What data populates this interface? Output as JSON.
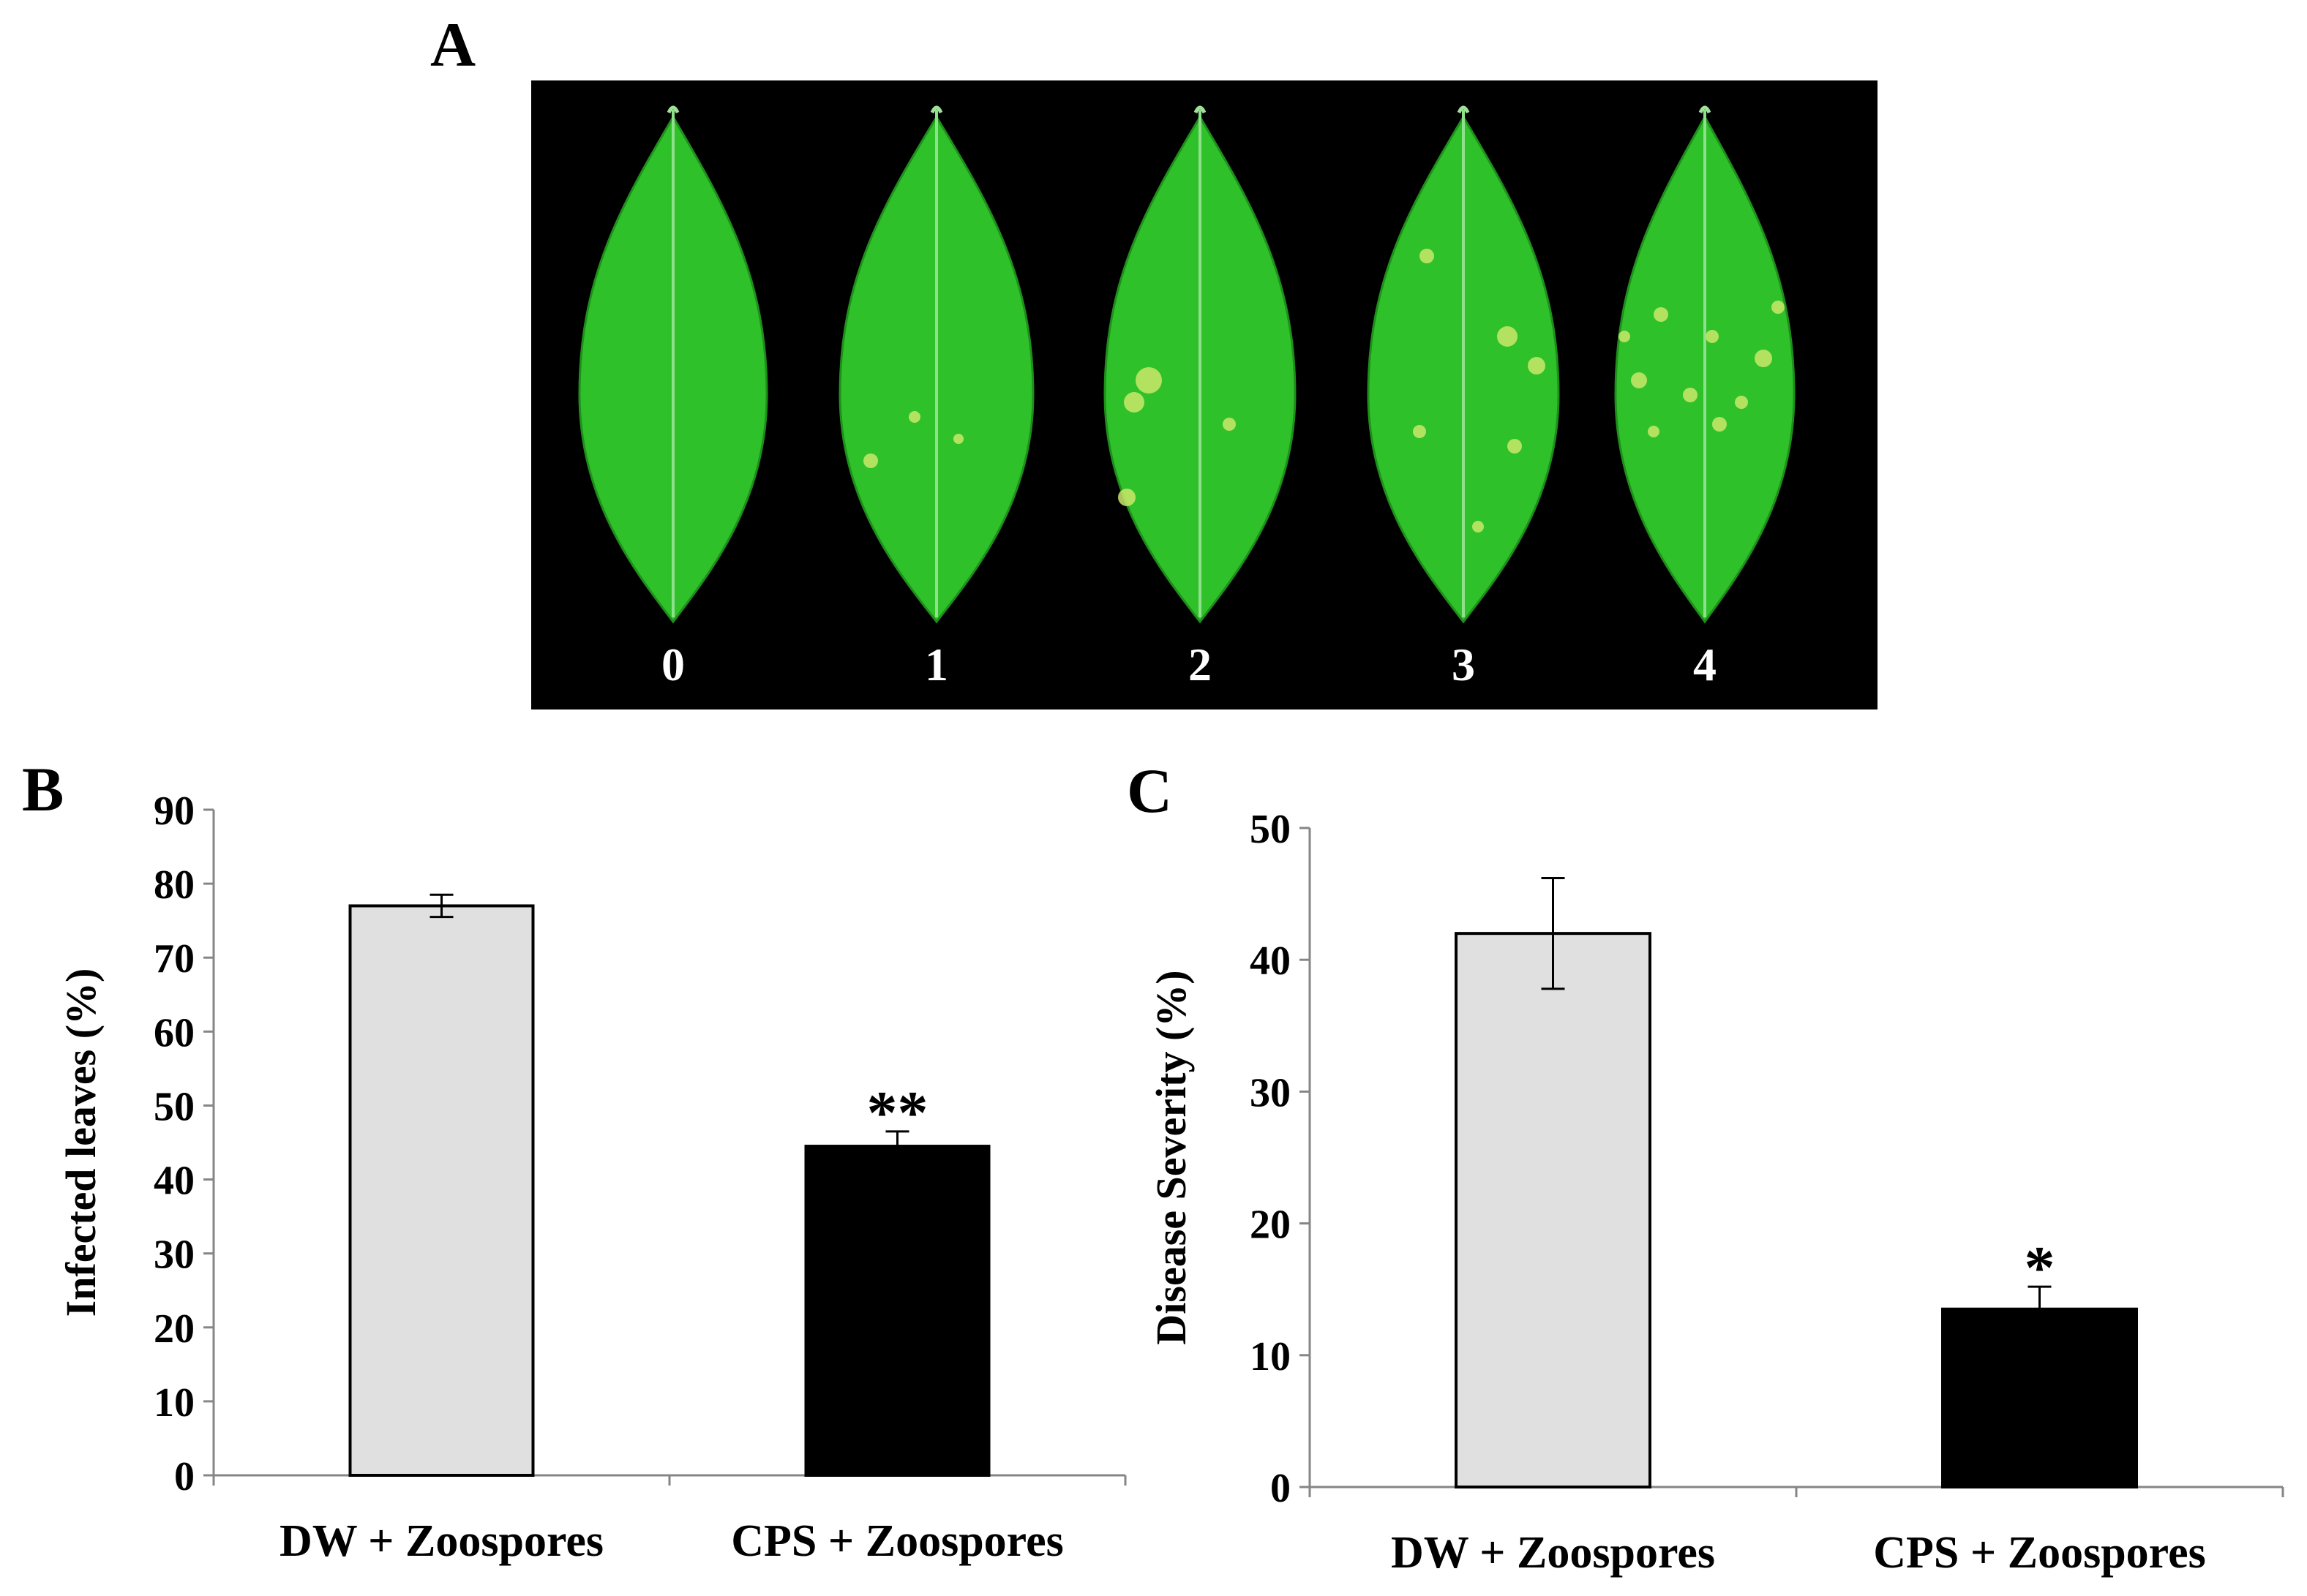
{
  "panel_a": {
    "label": "A",
    "leaf_scores": [
      "0",
      "1",
      "2",
      "3",
      "4"
    ],
    "background_color": "#000000",
    "leaf_color": "#2fc12a",
    "lesion_color": "#c9e86a"
  },
  "chart_data": [
    {
      "panel": "B",
      "type": "bar",
      "categories": [
        "DW + Zoospores",
        "CPS + Zoospores"
      ],
      "values": [
        77,
        44.5
      ],
      "errors": [
        1.5,
        2.0
      ],
      "significance": [
        "",
        "**"
      ],
      "bar_colors": [
        "#e0e0e0",
        "#000000"
      ],
      "title": "",
      "xlabel": "",
      "ylabel": "Infected leaves (%)",
      "ylim": [
        0,
        90
      ],
      "yticks": [
        0,
        10,
        20,
        30,
        40,
        50,
        60,
        70,
        80,
        90
      ],
      "grid": false
    },
    {
      "panel": "C",
      "type": "bar",
      "categories": [
        "DW + Zoospores",
        "CPS + Zoospores"
      ],
      "values": [
        42,
        13.5
      ],
      "errors": [
        4.2,
        1.7
      ],
      "significance": [
        "",
        "*"
      ],
      "bar_colors": [
        "#e0e0e0",
        "#000000"
      ],
      "title": "",
      "xlabel": "",
      "ylabel": "Disease Severity (%)",
      "ylim": [
        0,
        50
      ],
      "yticks": [
        0,
        10,
        20,
        30,
        40,
        50
      ],
      "grid": false
    }
  ]
}
